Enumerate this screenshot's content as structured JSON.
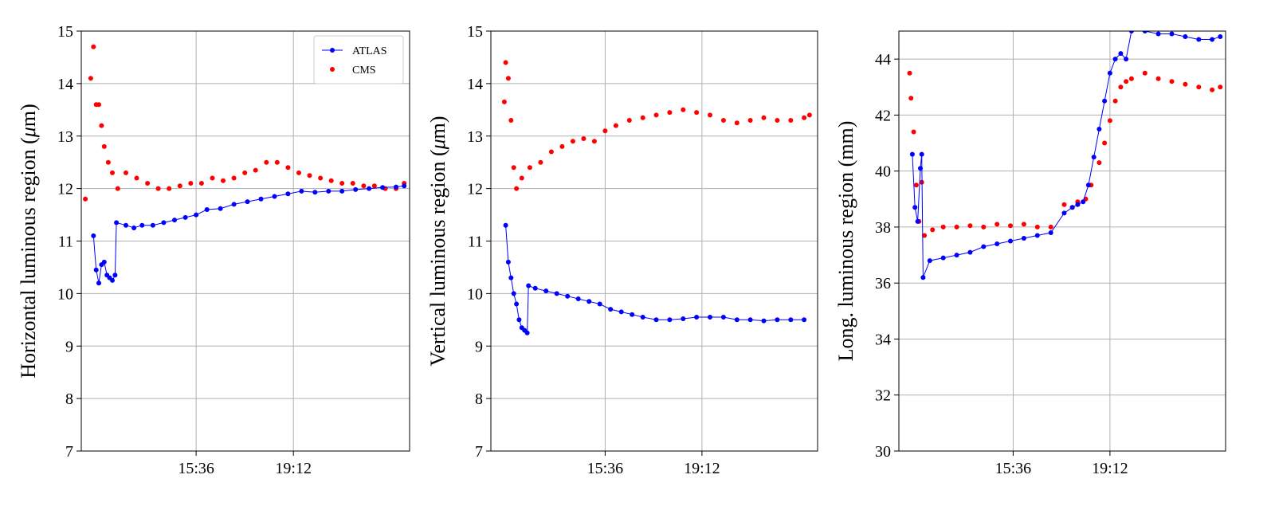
{
  "colors": {
    "atlas": "#0000ff",
    "cms": "#ff0000",
    "grid": "#b0b0b0",
    "frame": "#000000"
  },
  "legend": {
    "entries": [
      "ATLAS",
      "CMS"
    ],
    "placement": "top-right"
  },
  "chart_data": [
    {
      "type": "scatter",
      "ylabel": "Horizontal luminous region ($\\mu$m)",
      "ylim": [
        7,
        15
      ],
      "yticks": [
        "7",
        "8",
        "9",
        "10",
        "11",
        "12",
        "13",
        "14",
        "15"
      ],
      "x_unit": "time of day (hours)",
      "xlim": [
        11.35,
        23.5
      ],
      "xticks": [
        {
          "label": "15:36",
          "x": 15.6
        },
        {
          "label": "19:12",
          "x": 19.2
        }
      ],
      "grid": true,
      "legend": true,
      "series": [
        {
          "name": "ATLAS",
          "style": "line-dots",
          "points": [
            [
              11.8,
              11.1
            ],
            [
              11.9,
              10.45
            ],
            [
              12.0,
              10.2
            ],
            [
              12.1,
              10.55
            ],
            [
              12.2,
              10.6
            ],
            [
              12.3,
              10.35
            ],
            [
              12.4,
              10.3
            ],
            [
              12.5,
              10.25
            ],
            [
              12.6,
              10.35
            ],
            [
              12.65,
              11.35
            ],
            [
              13.0,
              11.3
            ],
            [
              13.3,
              11.25
            ],
            [
              13.6,
              11.3
            ],
            [
              14.0,
              11.3
            ],
            [
              14.4,
              11.35
            ],
            [
              14.8,
              11.4
            ],
            [
              15.2,
              11.45
            ],
            [
              15.6,
              11.5
            ],
            [
              16.0,
              11.6
            ],
            [
              16.5,
              11.62
            ],
            [
              17.0,
              11.7
            ],
            [
              17.5,
              11.75
            ],
            [
              18.0,
              11.8
            ],
            [
              18.5,
              11.85
            ],
            [
              19.0,
              11.9
            ],
            [
              19.5,
              11.95
            ],
            [
              20.0,
              11.93
            ],
            [
              20.5,
              11.95
            ],
            [
              21.0,
              11.95
            ],
            [
              21.5,
              11.98
            ],
            [
              22.0,
              12.0
            ],
            [
              22.5,
              12.02
            ],
            [
              23.0,
              12.03
            ],
            [
              23.3,
              12.05
            ]
          ]
        },
        {
          "name": "CMS",
          "style": "dots",
          "points": [
            [
              11.5,
              11.8
            ],
            [
              11.7,
              14.1
            ],
            [
              11.8,
              14.7
            ],
            [
              11.9,
              13.6
            ],
            [
              12.0,
              13.6
            ],
            [
              12.1,
              13.2
            ],
            [
              12.2,
              12.8
            ],
            [
              12.35,
              12.5
            ],
            [
              12.5,
              12.3
            ],
            [
              12.7,
              12.0
            ],
            [
              13.0,
              12.3
            ],
            [
              13.4,
              12.2
            ],
            [
              13.8,
              12.1
            ],
            [
              14.2,
              12.0
            ],
            [
              14.6,
              12.0
            ],
            [
              15.0,
              12.05
            ],
            [
              15.4,
              12.1
            ],
            [
              15.8,
              12.1
            ],
            [
              16.2,
              12.2
            ],
            [
              16.6,
              12.15
            ],
            [
              17.0,
              12.2
            ],
            [
              17.4,
              12.3
            ],
            [
              17.8,
              12.35
            ],
            [
              18.2,
              12.5
            ],
            [
              18.6,
              12.5
            ],
            [
              19.0,
              12.4
            ],
            [
              19.4,
              12.3
            ],
            [
              19.8,
              12.25
            ],
            [
              20.2,
              12.2
            ],
            [
              20.6,
              12.15
            ],
            [
              21.0,
              12.1
            ],
            [
              21.4,
              12.1
            ],
            [
              21.8,
              12.05
            ],
            [
              22.2,
              12.05
            ],
            [
              22.6,
              12.0
            ],
            [
              23.0,
              12.0
            ],
            [
              23.3,
              12.1
            ]
          ]
        }
      ]
    },
    {
      "type": "scatter",
      "ylabel": "Vertical luminous region ($\\mu$m)",
      "ylim": [
        7,
        15
      ],
      "yticks": [
        "7",
        "8",
        "9",
        "10",
        "11",
        "12",
        "13",
        "14",
        "15"
      ],
      "x_unit": "time of day (hours)",
      "xlim": [
        11.35,
        23.5
      ],
      "xticks": [
        {
          "label": "15:36",
          "x": 15.6
        },
        {
          "label": "19:12",
          "x": 19.2
        }
      ],
      "grid": true,
      "legend": false,
      "series": [
        {
          "name": "ATLAS",
          "style": "line-dots",
          "points": [
            [
              11.9,
              11.3
            ],
            [
              12.0,
              10.6
            ],
            [
              12.1,
              10.3
            ],
            [
              12.2,
              10.0
            ],
            [
              12.3,
              9.8
            ],
            [
              12.4,
              9.5
            ],
            [
              12.5,
              9.35
            ],
            [
              12.6,
              9.3
            ],
            [
              12.7,
              9.25
            ],
            [
              12.75,
              10.15
            ],
            [
              13.0,
              10.1
            ],
            [
              13.4,
              10.05
            ],
            [
              13.8,
              10.0
            ],
            [
              14.2,
              9.95
            ],
            [
              14.6,
              9.9
            ],
            [
              15.0,
              9.85
            ],
            [
              15.4,
              9.8
            ],
            [
              15.8,
              9.7
            ],
            [
              16.2,
              9.65
            ],
            [
              16.6,
              9.6
            ],
            [
              17.0,
              9.55
            ],
            [
              17.5,
              9.5
            ],
            [
              18.0,
              9.5
            ],
            [
              18.5,
              9.52
            ],
            [
              19.0,
              9.55
            ],
            [
              19.5,
              9.55
            ],
            [
              20.0,
              9.55
            ],
            [
              20.5,
              9.5
            ],
            [
              21.0,
              9.5
            ],
            [
              21.5,
              9.48
            ],
            [
              22.0,
              9.5
            ],
            [
              22.5,
              9.5
            ],
            [
              23.0,
              9.5
            ]
          ]
        },
        {
          "name": "CMS",
          "style": "dots",
          "points": [
            [
              11.85,
              13.65
            ],
            [
              11.9,
              14.4
            ],
            [
              12.0,
              14.1
            ],
            [
              12.1,
              13.3
            ],
            [
              12.2,
              12.4
            ],
            [
              12.3,
              12.0
            ],
            [
              12.5,
              12.2
            ],
            [
              12.8,
              12.4
            ],
            [
              13.2,
              12.5
            ],
            [
              13.6,
              12.7
            ],
            [
              14.0,
              12.8
            ],
            [
              14.4,
              12.9
            ],
            [
              14.8,
              12.95
            ],
            [
              15.2,
              12.9
            ],
            [
              15.6,
              13.1
            ],
            [
              16.0,
              13.2
            ],
            [
              16.5,
              13.3
            ],
            [
              17.0,
              13.35
            ],
            [
              17.5,
              13.4
            ],
            [
              18.0,
              13.45
            ],
            [
              18.5,
              13.5
            ],
            [
              19.0,
              13.45
            ],
            [
              19.5,
              13.4
            ],
            [
              20.0,
              13.3
            ],
            [
              20.5,
              13.25
            ],
            [
              21.0,
              13.3
            ],
            [
              21.5,
              13.35
            ],
            [
              22.0,
              13.3
            ],
            [
              22.5,
              13.3
            ],
            [
              23.0,
              13.35
            ],
            [
              23.2,
              13.4
            ]
          ]
        }
      ]
    },
    {
      "type": "scatter",
      "ylabel": "Long. luminous region (mm)",
      "ylim": [
        30,
        45
      ],
      "yticks": [
        "30",
        "32",
        "34",
        "36",
        "38",
        "40",
        "42",
        "44"
      ],
      "x_unit": "time of day (hours)",
      "xlim": [
        11.35,
        23.5
      ],
      "xticks": [
        {
          "label": "15:36",
          "x": 15.6
        },
        {
          "label": "19:12",
          "x": 19.2
        }
      ],
      "grid": true,
      "legend": false,
      "series": [
        {
          "name": "ATLAS",
          "style": "line-dots",
          "points": [
            [
              11.85,
              40.6
            ],
            [
              11.95,
              38.7
            ],
            [
              12.05,
              38.2
            ],
            [
              12.15,
              40.1
            ],
            [
              12.2,
              40.6
            ],
            [
              12.25,
              36.2
            ],
            [
              12.5,
              36.8
            ],
            [
              13.0,
              36.9
            ],
            [
              13.5,
              37.0
            ],
            [
              14.0,
              37.1
            ],
            [
              14.5,
              37.3
            ],
            [
              15.0,
              37.4
            ],
            [
              15.5,
              37.5
            ],
            [
              16.0,
              37.6
            ],
            [
              16.5,
              37.7
            ],
            [
              17.0,
              37.8
            ],
            [
              17.5,
              38.5
            ],
            [
              17.8,
              38.7
            ],
            [
              18.0,
              38.8
            ],
            [
              18.2,
              38.9
            ],
            [
              18.4,
              39.5
            ],
            [
              18.6,
              40.5
            ],
            [
              18.8,
              41.5
            ],
            [
              19.0,
              42.5
            ],
            [
              19.2,
              43.5
            ],
            [
              19.4,
              44.0
            ],
            [
              19.6,
              44.2
            ],
            [
              19.8,
              44.0
            ],
            [
              20.0,
              45.0
            ],
            [
              20.5,
              45.0
            ],
            [
              21.0,
              44.9
            ],
            [
              21.5,
              44.9
            ],
            [
              22.0,
              44.8
            ],
            [
              22.5,
              44.7
            ],
            [
              23.0,
              44.7
            ],
            [
              23.3,
              44.8
            ]
          ]
        },
        {
          "name": "CMS",
          "style": "dots",
          "points": [
            [
              11.75,
              43.5
            ],
            [
              11.8,
              42.6
            ],
            [
              11.9,
              41.4
            ],
            [
              12.0,
              39.5
            ],
            [
              12.1,
              38.2
            ],
            [
              12.2,
              39.6
            ],
            [
              12.3,
              37.7
            ],
            [
              12.6,
              37.9
            ],
            [
              13.0,
              38.0
            ],
            [
              13.5,
              38.0
            ],
            [
              14.0,
              38.05
            ],
            [
              14.5,
              38.0
            ],
            [
              15.0,
              38.1
            ],
            [
              15.5,
              38.05
            ],
            [
              16.0,
              38.1
            ],
            [
              16.5,
              38.0
            ],
            [
              17.0,
              38.0
            ],
            [
              17.5,
              38.8
            ],
            [
              17.8,
              38.7
            ],
            [
              18.0,
              38.9
            ],
            [
              18.3,
              39.0
            ],
            [
              18.5,
              39.5
            ],
            [
              18.8,
              40.3
            ],
            [
              19.0,
              41.0
            ],
            [
              19.2,
              41.8
            ],
            [
              19.4,
              42.5
            ],
            [
              19.6,
              43.0
            ],
            [
              19.8,
              43.2
            ],
            [
              20.0,
              43.3
            ],
            [
              20.5,
              43.5
            ],
            [
              21.0,
              43.3
            ],
            [
              21.5,
              43.2
            ],
            [
              22.0,
              43.1
            ],
            [
              22.5,
              43.0
            ],
            [
              23.0,
              42.9
            ],
            [
              23.3,
              43.0
            ]
          ]
        }
      ]
    }
  ]
}
